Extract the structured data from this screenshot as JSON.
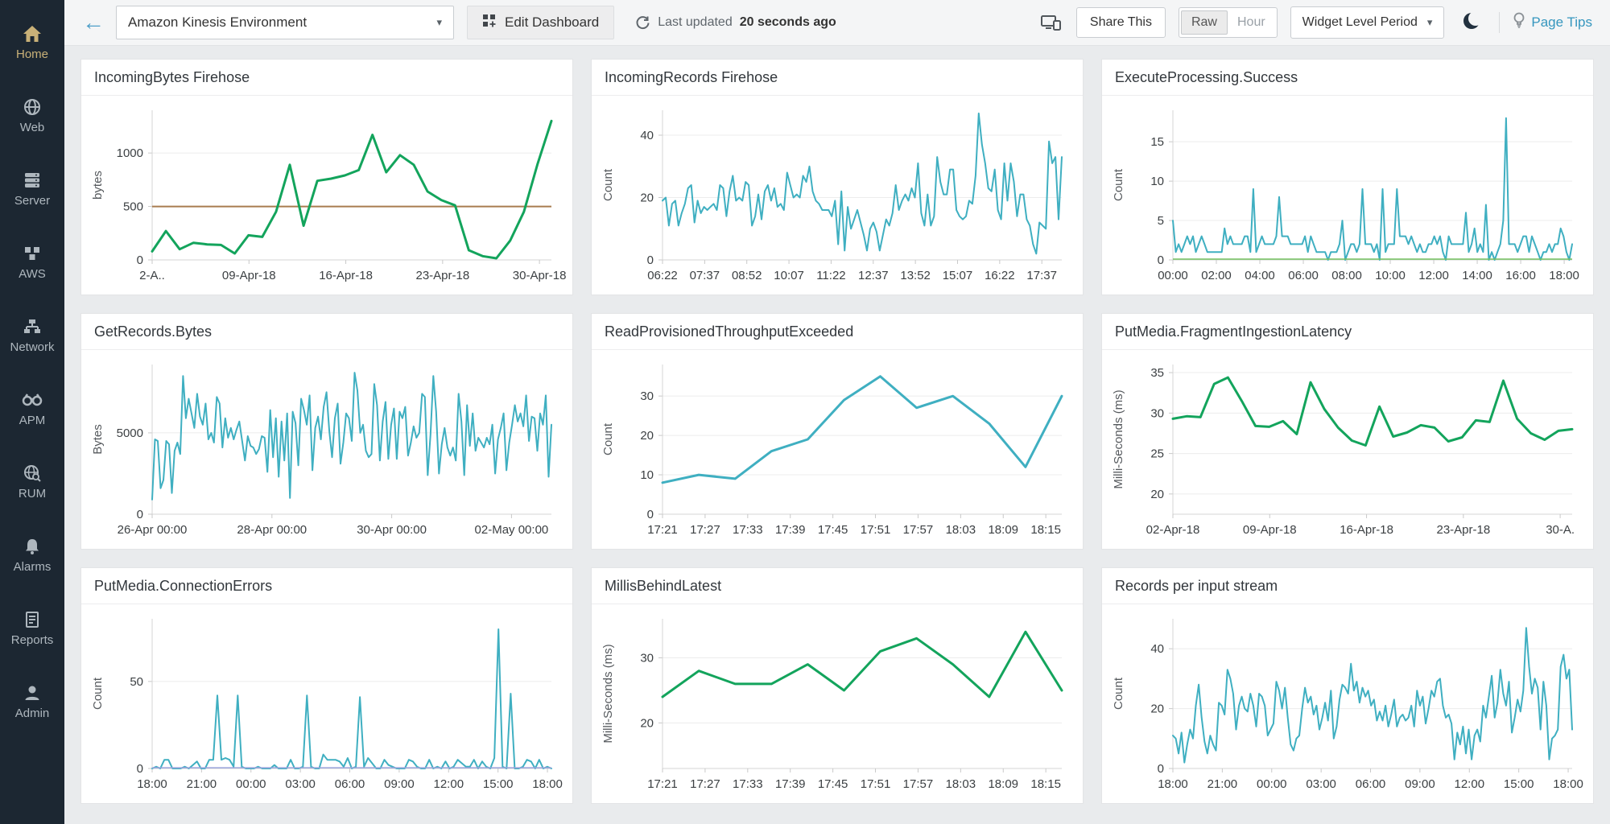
{
  "sidebar": {
    "items": [
      {
        "label": "Home",
        "icon": "home-icon",
        "active": true
      },
      {
        "label": "Web",
        "icon": "globe-icon",
        "active": false
      },
      {
        "label": "Server",
        "icon": "server-icon",
        "active": false
      },
      {
        "label": "AWS",
        "icon": "cubes-icon",
        "active": false
      },
      {
        "label": "Network",
        "icon": "network-icon",
        "active": false
      },
      {
        "label": "APM",
        "icon": "binoculars-icon",
        "active": false
      },
      {
        "label": "RUM",
        "icon": "globe-search-icon",
        "active": false
      },
      {
        "label": "Alarms",
        "icon": "bell-icon",
        "active": false
      },
      {
        "label": "Reports",
        "icon": "report-icon",
        "active": false
      },
      {
        "label": "Admin",
        "icon": "person-icon",
        "active": false
      }
    ]
  },
  "header": {
    "dashboard_select": "Amazon Kinesis Environment",
    "edit_dashboard": "Edit Dashboard",
    "last_updated_prefix": "Last updated",
    "last_updated_value": "20 seconds ago",
    "share_this": "Share This",
    "toggle_raw": "Raw",
    "toggle_hour": "Hour",
    "widget_period": "Widget Level Period",
    "page_tips": "Page Tips"
  },
  "colors": {
    "teal_line": "#3fafc1",
    "green_line": "#13a45c",
    "threshold_brown": "#a87c4f",
    "flat_green": "#74c15f",
    "flat_purple": "#9aa3dc",
    "accent_teal": "#3596be",
    "sidebar_bg": "#1c2732",
    "home_gold": "#c9b178"
  },
  "chart_data": [
    {
      "type": "line",
      "title": "IncomingBytes Firehose",
      "ylabel": "bytes",
      "y_ticks": [
        0,
        500,
        1000
      ],
      "ylim": [
        0,
        1400
      ],
      "x_ticks": [
        "2-A..",
        "09-Apr-18",
        "16-Apr-18",
        "23-Apr-18",
        "30-Apr-18"
      ],
      "x_span": 0.97,
      "threshold": {
        "value": 500,
        "color": "#a87c4f"
      },
      "series": [
        {
          "color": "#13a45c",
          "width": 3,
          "values": [
            80,
            270,
            100,
            160,
            145,
            140,
            60,
            230,
            215,
            450,
            890,
            320,
            740,
            760,
            790,
            840,
            1170,
            820,
            980,
            890,
            640,
            560,
            510,
            90,
            35,
            15,
            180,
            450,
            900,
            1300
          ]
        }
      ]
    },
    {
      "type": "line",
      "title": "IncomingRecords Firehose",
      "ylabel": "Count",
      "y_ticks": [
        0,
        20,
        40
      ],
      "ylim": [
        0,
        48
      ],
      "x_ticks": [
        "06:22",
        "07:37",
        "08:52",
        "10:07",
        "11:22",
        "12:37",
        "13:52",
        "15:07",
        "16:22",
        "17:37"
      ],
      "x_span": 0.95,
      "series": [
        {
          "color": "#3fafc1",
          "width": 2,
          "values": [
            19,
            20,
            11,
            18,
            19,
            11,
            15,
            18,
            23,
            24,
            12,
            19,
            15,
            17,
            16,
            17,
            18,
            16,
            24,
            23,
            14,
            22,
            27,
            19,
            20,
            19,
            25,
            24,
            11,
            14,
            21,
            13,
            22,
            24,
            19,
            23,
            17,
            18,
            16,
            28,
            24,
            20,
            21,
            20,
            27,
            25,
            30,
            22,
            19,
            18,
            16,
            16,
            16,
            14,
            19,
            5,
            22,
            3,
            17,
            10,
            13,
            16,
            12,
            8,
            3,
            10,
            12,
            9,
            3,
            8,
            13,
            11,
            15,
            24,
            16,
            19,
            21,
            19,
            23,
            20,
            31,
            15,
            11,
            21,
            11,
            14,
            33,
            25,
            21,
            21,
            29,
            29,
            16,
            14,
            13,
            14,
            19,
            18,
            27,
            47,
            37,
            31,
            23,
            22,
            29,
            16,
            13,
            31,
            19,
            31,
            25,
            14,
            21,
            21,
            13,
            11,
            5,
            2,
            12,
            11,
            10,
            38,
            31,
            33,
            13,
            33
          ]
        }
      ]
    },
    {
      "type": "line",
      "title": "ExecuteProcessing.Success",
      "ylabel": "Count",
      "y_ticks": [
        0,
        5,
        10,
        15
      ],
      "ylim": [
        0,
        19
      ],
      "x_ticks": [
        "00:00",
        "02:00",
        "04:00",
        "06:00",
        "08:00",
        "10:00",
        "12:00",
        "14:00",
        "16:00",
        "18:00"
      ],
      "x_span": 0.98,
      "series": [
        {
          "color": "#3fafc1",
          "width": 2,
          "values": [
            5,
            1,
            2,
            1,
            2,
            3,
            2,
            3,
            1,
            2,
            3,
            2,
            1,
            1,
            1,
            1,
            1,
            1,
            4,
            2,
            3,
            2,
            2,
            2,
            2,
            3,
            3,
            1,
            9,
            1,
            2,
            3,
            2,
            2,
            2,
            2,
            3,
            8,
            3,
            3,
            3,
            2,
            2,
            2,
            2,
            2,
            3,
            1,
            3,
            2,
            1,
            1,
            1,
            1,
            0,
            1,
            1,
            1,
            2,
            5,
            0,
            1,
            2,
            2,
            1,
            2,
            9,
            2,
            2,
            2,
            1,
            2,
            0,
            9,
            1,
            2,
            2,
            2,
            9,
            3,
            3,
            3,
            2,
            3,
            2,
            1,
            2,
            1,
            1,
            2,
            2,
            3,
            2,
            3,
            1,
            0,
            3,
            2,
            2,
            2,
            2,
            2,
            6,
            1,
            2,
            4,
            1,
            2,
            1,
            7,
            0,
            1,
            0,
            1,
            2,
            5,
            18,
            2,
            2,
            2,
            1,
            2,
            3,
            3,
            1,
            3,
            2,
            1,
            0,
            1,
            1,
            2,
            1,
            2,
            2,
            4,
            3,
            1,
            0,
            2
          ]
        },
        {
          "color": "#74c15f",
          "width": 1.5,
          "flat_value": 0.1
        }
      ]
    },
    {
      "type": "line",
      "title": "GetRecords.Bytes",
      "ylabel": "Bytes",
      "y_ticks": [
        0,
        5000
      ],
      "ylim": [
        0,
        9200
      ],
      "x_ticks": [
        "26-Apr 00:00",
        "28-Apr 00:00",
        "30-Apr 00:00",
        "02-May 00:00"
      ],
      "x_span": 0.9,
      "series": [
        {
          "color": "#3fafc1",
          "width": 2,
          "values": [
            900,
            4600,
            4500,
            1600,
            2100,
            4500,
            4300,
            1300,
            3900,
            4400,
            3700,
            8500,
            5900,
            7100,
            6200,
            5300,
            7400,
            6000,
            5500,
            6800,
            4600,
            5000,
            4400,
            7200,
            6800,
            4100,
            5900,
            4700,
            5300,
            4600,
            5200,
            5700,
            4500,
            3300,
            4800,
            4200,
            4100,
            3700,
            4000,
            4800,
            4700,
            2600,
            6400,
            3500,
            5900,
            2300,
            5700,
            3300,
            6200,
            1000,
            6300,
            5600,
            3000,
            7100,
            6400,
            5500,
            7300,
            2700,
            5300,
            6000,
            4600,
            6600,
            7500,
            5100,
            3500,
            5900,
            6800,
            3100,
            4400,
            6200,
            5900,
            4500,
            8700,
            7600,
            5000,
            5500,
            3900,
            3500,
            3700,
            8000,
            6700,
            3300,
            5700,
            6900,
            3400,
            5500,
            6500,
            3400,
            6300,
            5900,
            6600,
            3600,
            4400,
            5400,
            4700,
            5000,
            7400,
            7200,
            2400,
            4900,
            8500,
            6300,
            2500,
            4300,
            5300,
            4100,
            3600,
            4100,
            3300,
            7400,
            5700,
            2400,
            6700,
            4200,
            6200,
            3900,
            4700,
            4400,
            4100,
            4700,
            4300,
            5500,
            2500,
            4600,
            5300,
            6200,
            2700,
            4400,
            5500,
            6700,
            5700,
            6200,
            5400,
            7300,
            4500,
            6000,
            5900,
            3900,
            6200,
            5500,
            7300,
            2300,
            5500
          ]
        }
      ]
    },
    {
      "type": "line",
      "title": "ReadProvisionedThroughputExceeded",
      "ylabel": "Count",
      "y_ticks": [
        0,
        10,
        20,
        30
      ],
      "ylim": [
        0,
        38
      ],
      "x_ticks": [
        "17:21",
        "17:27",
        "17:33",
        "17:39",
        "17:45",
        "17:51",
        "17:57",
        "18:03",
        "18:09",
        "18:15"
      ],
      "x_span": 0.96,
      "series": [
        {
          "color": "#3fafc1",
          "width": 3,
          "values": [
            8,
            10,
            9,
            16,
            19,
            29,
            35,
            27,
            30,
            23,
            12,
            30
          ]
        }
      ]
    },
    {
      "type": "line",
      "title": "PutMedia.FragmentIngestionLatency",
      "ylabel": "Milli-Seconds (ms)",
      "y_ticks": [
        20,
        25,
        30,
        35
      ],
      "ylim": [
        17.5,
        36
      ],
      "x_ticks": [
        "02-Apr-18",
        "09-Apr-18",
        "16-Apr-18",
        "23-Apr-18",
        "30-A."
      ],
      "x_span": 0.97,
      "series": [
        {
          "color": "#13a45c",
          "width": 3,
          "values": [
            29.3,
            29.6,
            29.5,
            33.6,
            34.4,
            31.5,
            28.4,
            28.3,
            29.0,
            27.4,
            33.8,
            30.5,
            28.2,
            26.6,
            26.0,
            30.8,
            27.1,
            27.6,
            28.5,
            28.2,
            26.5,
            27.0,
            29.1,
            28.9,
            34.0,
            29.3,
            27.5,
            26.7,
            27.8,
            28.0
          ]
        }
      ]
    },
    {
      "type": "line",
      "title": "PutMedia.ConnectionErrors",
      "ylabel": "Count",
      "y_ticks": [
        0,
        50
      ],
      "ylim": [
        0,
        86
      ],
      "x_ticks": [
        "18:00",
        "21:00",
        "00:00",
        "03:00",
        "06:00",
        "09:00",
        "12:00",
        "15:00",
        "18:00"
      ],
      "x_span": 0.99,
      "series": [
        {
          "color": "#3fafc1",
          "width": 2,
          "values": [
            0,
            1,
            0,
            5,
            5,
            0,
            0,
            0,
            1,
            0,
            2,
            4,
            0,
            0,
            5,
            5,
            42,
            5,
            6,
            5,
            1,
            42,
            1,
            0,
            0,
            0,
            1,
            0,
            0,
            0,
            2,
            0,
            0,
            0,
            5,
            0,
            0,
            1,
            42,
            1,
            0,
            0,
            8,
            5,
            5,
            5,
            4,
            1,
            6,
            0,
            1,
            41,
            1,
            6,
            3,
            0,
            0,
            5,
            2,
            1,
            0,
            0,
            0,
            5,
            4,
            1,
            0,
            0,
            5,
            0,
            1,
            0,
            4,
            0,
            1,
            5,
            3,
            1,
            1,
            5,
            0,
            4,
            1,
            0,
            6,
            80,
            1,
            0,
            43,
            0,
            0,
            1,
            5,
            4,
            0,
            5,
            0,
            1,
            0
          ]
        },
        {
          "color": "#9aa3dc",
          "width": 1.5,
          "flat_value": 0.4
        }
      ]
    },
    {
      "type": "line",
      "title": "MillisBehindLatest",
      "ylabel": "Milli-Seconds (ms)",
      "y_ticks": [
        20,
        30
      ],
      "ylim": [
        13,
        36
      ],
      "x_ticks": [
        "17:21",
        "17:27",
        "17:33",
        "17:39",
        "17:45",
        "17:51",
        "17:57",
        "18:03",
        "18:09",
        "18:15"
      ],
      "x_span": 0.96,
      "series": [
        {
          "color": "#13a45c",
          "width": 3,
          "values": [
            24,
            28,
            26,
            26,
            29,
            25,
            31,
            33,
            29,
            24,
            34,
            25
          ]
        }
      ]
    },
    {
      "type": "line",
      "title": "Records per input stream",
      "ylabel": "Count",
      "y_ticks": [
        0,
        20,
        40
      ],
      "ylim": [
        0,
        50
      ],
      "x_ticks": [
        "18:00",
        "21:00",
        "00:00",
        "03:00",
        "06:00",
        "09:00",
        "12:00",
        "15:00",
        "18:00"
      ],
      "x_span": 0.99,
      "series": [
        {
          "color": "#3fafc1",
          "width": 2,
          "values": [
            11,
            10,
            5,
            12,
            2,
            8,
            13,
            10,
            21,
            28,
            17,
            9,
            5,
            11,
            8,
            6,
            22,
            21,
            18,
            33,
            30,
            25,
            13,
            21,
            24,
            20,
            19,
            25,
            21,
            14,
            25,
            24,
            21,
            11,
            13,
            15,
            29,
            26,
            20,
            27,
            17,
            8,
            6,
            10,
            11,
            20,
            27,
            22,
            24,
            18,
            21,
            13,
            17,
            22,
            16,
            26,
            10,
            14,
            23,
            28,
            27,
            25,
            35,
            26,
            29,
            22,
            27,
            24,
            26,
            21,
            23,
            16,
            19,
            16,
            21,
            14,
            18,
            23,
            14,
            17,
            18,
            16,
            17,
            21,
            14,
            26,
            21,
            24,
            15,
            20,
            26,
            24,
            29,
            30,
            21,
            17,
            18,
            15,
            3,
            12,
            8,
            14,
            5,
            13,
            3,
            11,
            13,
            9,
            21,
            17,
            24,
            31,
            17,
            22,
            33,
            25,
            21,
            29,
            12,
            17,
            23,
            19,
            26,
            47,
            34,
            25,
            30,
            27,
            13,
            29,
            21,
            3,
            10,
            11,
            13,
            34,
            38,
            30,
            33,
            13
          ]
        }
      ]
    }
  ]
}
